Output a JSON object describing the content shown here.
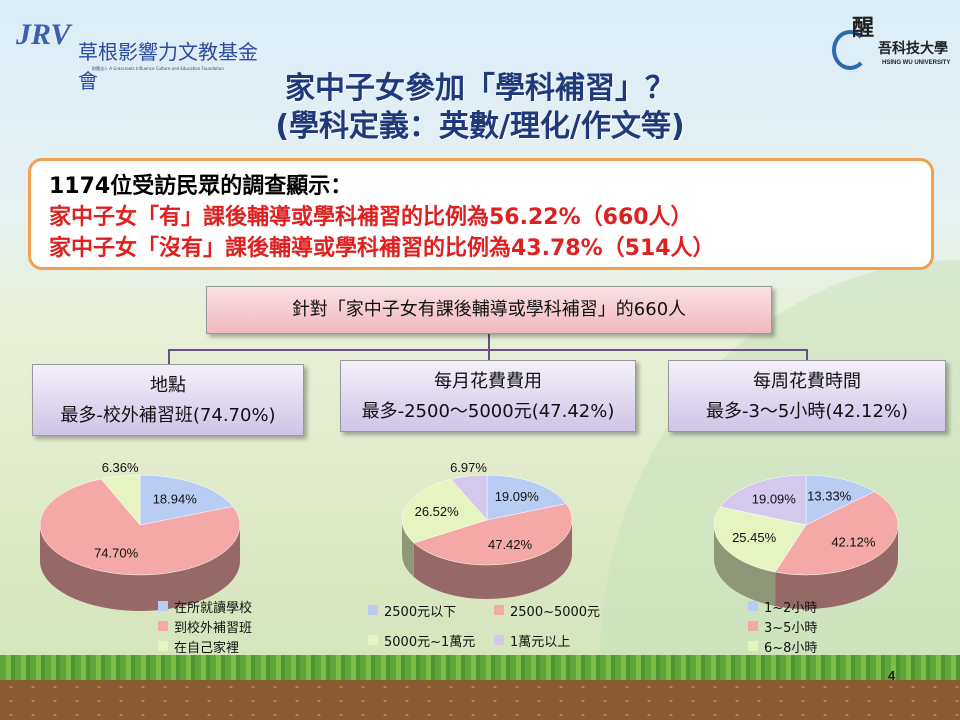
{
  "logos": {
    "left_mark": "JRV",
    "left_name": "草根影響力文教基金會",
    "left_sub": "財團法人 A Grassroots Influence Culture and Education Foundation",
    "right_name_1": "醒",
    "right_name_2": "吾科技大學",
    "right_sub": "HSING WU UNIVERSITY"
  },
  "title": {
    "line1": "家中子女參加「學科補習」？",
    "line2": "(學科定義：英數/理化/作文等)"
  },
  "summary": {
    "line1": "1174位受訪民眾的調查顯示：",
    "line2": "家中子女「有」課後輔導或學科補習的比例為56.22%（660人）",
    "line3": "家中子女「沒有」課後輔導或學科補習的比例為43.78%（514人）"
  },
  "tree": {
    "root": "針對「家中子女有課後輔導或學科補習」的660人",
    "categories": [
      {
        "title": "地點",
        "detail": "最多-校外補習班(74.70%)"
      },
      {
        "title": "每月花費費用",
        "detail": "最多-2500～5000元(47.42%)"
      },
      {
        "title": "每周花費時間",
        "detail": "最多-3～5小時(42.12%)"
      }
    ]
  },
  "colors": {
    "blue": "#b8ccf4",
    "red": "#f4a8a8",
    "green": "#e6f4c0",
    "purple": "#d4c8ec",
    "accent_border": "#f0a050",
    "title": "#1f3a7a",
    "highlight": "#e02020"
  },
  "chart_data": [
    {
      "type": "pie",
      "series": [
        {
          "name": "在所就讀學校",
          "value": 18.94,
          "label": "18.94%",
          "color": "#b8ccf4"
        },
        {
          "name": "到校外補習班",
          "value": 74.7,
          "label": "74.70%",
          "color": "#f4a8a8"
        },
        {
          "name": "在自己家裡",
          "value": 6.36,
          "label": "6.36%",
          "color": "#e6f4c0"
        }
      ],
      "legend": "bottom"
    },
    {
      "type": "pie",
      "series": [
        {
          "name": "2500元以下",
          "value": 19.09,
          "label": "19.09%",
          "color": "#b8ccf4"
        },
        {
          "name": "2500~5000元",
          "value": 47.42,
          "label": "47.42%",
          "color": "#f4a8a8"
        },
        {
          "name": "5000元~1萬元",
          "value": 26.52,
          "label": "26.52%",
          "color": "#e6f4c0"
        },
        {
          "name": "1萬元以上",
          "value": 6.97,
          "label": "6.97%",
          "color": "#d4c8ec"
        }
      ],
      "legend": "bottom"
    },
    {
      "type": "pie",
      "series": [
        {
          "name": "1~2小時",
          "value": 13.33,
          "label": "13.33%",
          "color": "#b8ccf4"
        },
        {
          "name": "3~5小時",
          "value": 42.12,
          "label": "42.12%",
          "color": "#f4a8a8"
        },
        {
          "name": "6~8小時",
          "value": 25.45,
          "label": "25.45%",
          "color": "#e6f4c0"
        },
        {
          "name": "",
          "value": 19.09,
          "label": "19.09%",
          "color": "#d4c8ec"
        }
      ],
      "legend": "bottom"
    }
  ],
  "page_number": "4"
}
